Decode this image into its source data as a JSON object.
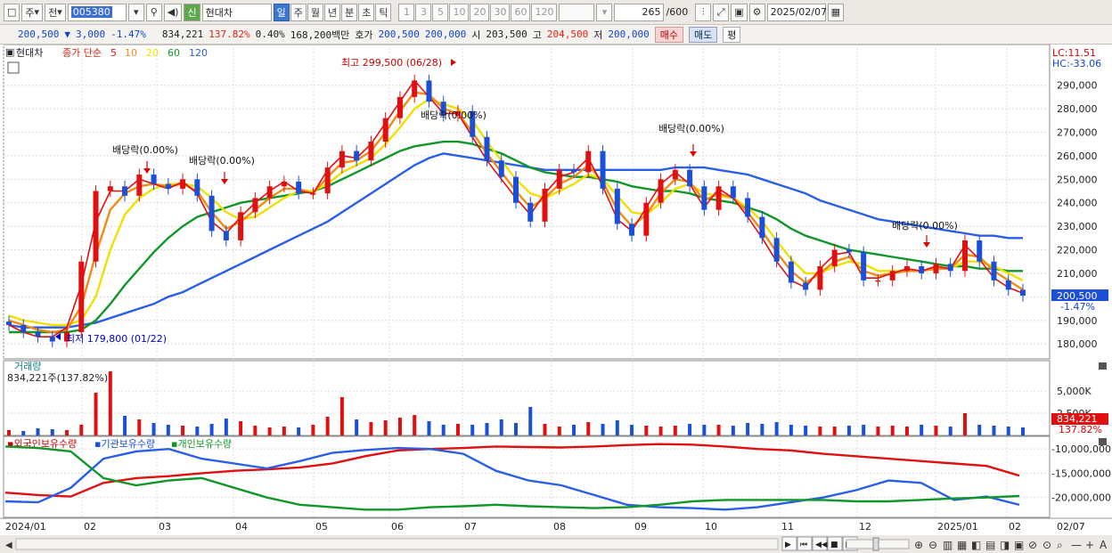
{
  "toolbar": {
    "type_select": "주",
    "prefix_select": "전",
    "code": "005380",
    "market_badge": "신",
    "name": "현대차",
    "periods": [
      "일",
      "주",
      "월",
      "년",
      "분",
      "초",
      "틱"
    ],
    "active_period": "일",
    "minute_buttons": [
      "1",
      "3",
      "5",
      "10",
      "20",
      "30",
      "60",
      "120"
    ],
    "count": "265",
    "count_max": "/600",
    "date": "2025/02/07"
  },
  "quote": {
    "price": "200,500",
    "change_arrow": "▼",
    "change": "3,000",
    "change_pct": "-1.47%",
    "volume": "834,221",
    "volume_ratio": "137.82%",
    "turnover": "0.40%",
    "amount": "168,200백만",
    "bid_label": "호가",
    "bid1": "200,500",
    "bid2": "200,000",
    "open_label": "시",
    "open": "203,500",
    "high_label": "고",
    "high": "204,500",
    "low_label": "저",
    "low": "200,000",
    "buy_label": "매수",
    "sell_label": "매도",
    "avg_label": "평"
  },
  "colors": {
    "ma5": "#e01010",
    "ma10": "#f08c14",
    "ma20": "#f0e000",
    "ma60": "#12962a",
    "ma120": "#2a5ee8",
    "up": "#e01010",
    "down": "#1a4fd8"
  },
  "chart_data": {
    "type": "candlestick",
    "title": "현대차",
    "price_legend": {
      "label": "종가 단순",
      "ma": [
        "5",
        "10",
        "20",
        "60",
        "120"
      ]
    },
    "y_ticks": [
      "290,000",
      "280,000",
      "270,000",
      "260,000",
      "250,000",
      "240,000",
      "230,000",
      "220,000",
      "210,000",
      "200,000",
      "190,000",
      "180,000"
    ],
    "ylim": [
      174000,
      302000
    ],
    "x_ticks": [
      "2024/01",
      "02",
      "03",
      "04",
      "05",
      "06",
      "07",
      "08",
      "09",
      "10",
      "11",
      "12",
      "2025/01",
      "02",
      "02/07"
    ],
    "dates": [
      "2024/01",
      "2024/02",
      "2024/03",
      "2024/04",
      "2024/05",
      "2024/06",
      "2024/07",
      "2024/08",
      "2024/09",
      "2024/10",
      "2024/11",
      "2024/12",
      "2025/01",
      "2025/02"
    ],
    "close_path": [
      188000,
      185000,
      183000,
      181000,
      185000,
      215000,
      245000,
      247000,
      243000,
      252000,
      248000,
      246000,
      250000,
      243000,
      228000,
      224000,
      236000,
      242000,
      247000,
      249000,
      244000,
      244000,
      255000,
      262000,
      258000,
      266000,
      276000,
      285000,
      292000,
      283000,
      277000,
      279000,
      268000,
      258000,
      251000,
      240000,
      232000,
      246000,
      254000,
      253000,
      262000,
      246000,
      231000,
      226000,
      240000,
      250000,
      254000,
      247000,
      237000,
      247000,
      242000,
      234000,
      225000,
      215000,
      206000,
      203000,
      213000,
      220000,
      219000,
      207000,
      207000,
      211000,
      213000,
      210000,
      214000,
      211000,
      224000,
      215000,
      207000,
      203000,
      200500
    ],
    "ma_series": {
      "5": [
        188000,
        185000,
        183000,
        183000,
        187000,
        205000,
        232000,
        245000,
        245000,
        250000,
        248000,
        246000,
        249000,
        244000,
        232000,
        227000,
        234000,
        240000,
        245000,
        249000,
        245000,
        244000,
        254000,
        260000,
        259000,
        265000,
        274000,
        283000,
        292000,
        285000,
        278000,
        278000,
        268000,
        258000,
        250000,
        242000,
        235000,
        244000,
        251000,
        253000,
        259000,
        247000,
        233000,
        228000,
        238000,
        248000,
        253000,
        248000,
        238000,
        246000,
        242000,
        234000,
        225000,
        215000,
        207000,
        204000,
        212000,
        218000,
        219000,
        208000,
        208000,
        210000,
        212000,
        211000,
        213000,
        212000,
        222000,
        216000,
        208000,
        204000,
        201500
      ],
      "10": [
        190000,
        188000,
        186000,
        185000,
        186000,
        196000,
        218000,
        237000,
        244000,
        247000,
        248000,
        247000,
        248000,
        245000,
        236000,
        229000,
        232000,
        237000,
        242000,
        246000,
        246000,
        244000,
        251000,
        257000,
        258000,
        262000,
        270000,
        279000,
        287000,
        286000,
        280000,
        278000,
        270000,
        261000,
        253000,
        245000,
        238000,
        242000,
        248000,
        251000,
        256000,
        249000,
        237000,
        230000,
        235000,
        244000,
        250000,
        249000,
        241000,
        244000,
        242000,
        236000,
        228000,
        219000,
        211000,
        206000,
        210000,
        215000,
        217000,
        211000,
        209000,
        210000,
        211000,
        211000,
        212000,
        212000,
        218000,
        217000,
        211000,
        207000,
        203000
      ],
      "20": [
        192000,
        190000,
        189000,
        188000,
        188000,
        190000,
        200000,
        220000,
        235000,
        242000,
        246000,
        248000,
        248000,
        247000,
        242000,
        236000,
        233000,
        234000,
        238000,
        242000,
        245000,
        245000,
        248000,
        253000,
        256000,
        259000,
        265000,
        272000,
        280000,
        284000,
        282000,
        280000,
        275000,
        266000,
        258000,
        250000,
        244000,
        242000,
        245000,
        248000,
        252000,
        250000,
        243000,
        236000,
        235000,
        240000,
        246000,
        248000,
        244000,
        243000,
        242000,
        238000,
        232000,
        224000,
        216000,
        210000,
        210000,
        213000,
        215000,
        214000,
        211000,
        211000,
        211000,
        211000,
        212000,
        212000,
        215000,
        215000,
        213000,
        210000,
        207000
      ],
      "60": [
        185000,
        185000,
        185000,
        185000,
        185000,
        186000,
        190000,
        197000,
        205000,
        212000,
        219000,
        225000,
        230000,
        234000,
        236000,
        238000,
        240000,
        241000,
        242000,
        243000,
        244000,
        245000,
        247000,
        250000,
        253000,
        256000,
        259000,
        262000,
        264000,
        265000,
        266000,
        266000,
        265000,
        263000,
        261000,
        258000,
        255000,
        253000,
        252000,
        251000,
        251000,
        250000,
        249000,
        247000,
        246000,
        245000,
        245000,
        244000,
        242000,
        241000,
        240000,
        238000,
        236000,
        233000,
        229000,
        226000,
        224000,
        222000,
        220000,
        219000,
        218000,
        217000,
        216000,
        215000,
        214000,
        213000,
        213000,
        212000,
        212000,
        211000,
        211000
      ],
      "120": [
        188000,
        187000,
        187000,
        187000,
        187000,
        188000,
        189000,
        191000,
        193000,
        195000,
        197000,
        200000,
        202000,
        205000,
        208000,
        211000,
        214000,
        217000,
        220000,
        223000,
        226000,
        229000,
        232000,
        236000,
        240000,
        244000,
        248000,
        252000,
        256000,
        259000,
        261000,
        260000,
        259000,
        258000,
        257000,
        256000,
        255000,
        254000,
        254000,
        254000,
        254000,
        254000,
        254000,
        254000,
        254000,
        254000,
        255000,
        255000,
        255000,
        254000,
        253000,
        252000,
        250000,
        248000,
        246000,
        244000,
        241000,
        239000,
        237000,
        235000,
        233000,
        232000,
        231000,
        230000,
        229000,
        228000,
        227000,
        226000,
        226000,
        225000,
        225000
      ]
    },
    "annotations": [
      {
        "text": "최고 299,500 (06/28)",
        "type": "high"
      },
      {
        "text": "최저 179,800 (01/22)",
        "type": "low"
      },
      {
        "text": "배당락(0.00%)",
        "type": "ex-div"
      },
      {
        "text": "배당락(0.00%)",
        "type": "ex-div"
      },
      {
        "text": "배당락(0.00%)",
        "type": "ex-div"
      },
      {
        "text": "배당락(0.00%)",
        "type": "ex-div"
      },
      {
        "text": "배당락(0.00%)",
        "type": "ex-div"
      }
    ],
    "right_labels": {
      "lc": "LC:11.51",
      "hc": "HC:-33.06",
      "price": "200,500",
      "pct": "-1.47%"
    },
    "volume_panel": {
      "title": "거래량",
      "summary": "834,221주(137.82%)",
      "y_ticks": [
        "5,000K",
        "2,500K"
      ],
      "last": "834,221",
      "last_pct": "137.82%",
      "bars": [
        0.6,
        0.5,
        0.8,
        0.7,
        0.6,
        1.2,
        4.8,
        7.2,
        2.2,
        1.8,
        1.4,
        1.2,
        1.1,
        1.0,
        1.3,
        1.9,
        1.6,
        1.1,
        0.9,
        1.0,
        0.9,
        1.2,
        2.1,
        4.3,
        1.8,
        1.5,
        1.7,
        2.0,
        2.3,
        1.6,
        1.2,
        1.3,
        1.2,
        1.4,
        1.8,
        1.4,
        3.2,
        1.3,
        1.0,
        1.2,
        1.5,
        1.3,
        1.7,
        1.2,
        1.1,
        1.0,
        1.1,
        1.3,
        1.2,
        1.2,
        1.1,
        1.4,
        1.3,
        1.5,
        1.2,
        1.1,
        1.0,
        1.0,
        1.1,
        1.2,
        1.0,
        1.1,
        1.0,
        1.2,
        1.1,
        1.0,
        2.5,
        1.2,
        1.1,
        1.0,
        0.9
      ]
    },
    "holdings_panel": {
      "legend": [
        "외국인보유수량",
        "기관보유수량",
        "개인보유수량"
      ],
      "y_ticks": [
        "-10,000,000",
        "-15,000,000",
        "-20,000,000"
      ],
      "foreign": [
        -19000000,
        -19500000,
        -19800000,
        -17000000,
        -16000000,
        -15600000,
        -15000000,
        -14500000,
        -14200000,
        -13800000,
        -13000000,
        -11500000,
        -10300000,
        -10000000,
        -9800000,
        -9500000,
        -9600000,
        -9700000,
        -9500000,
        -9200000,
        -9000000,
        -9100000,
        -9500000,
        -10000000,
        -10300000,
        -11000000,
        -11500000,
        -12000000,
        -12500000,
        -13000000,
        -13500000,
        -15500000
      ],
      "institution": [
        -20800000,
        -21000000,
        -18000000,
        -12000000,
        -10500000,
        -10000000,
        -12000000,
        -13000000,
        -14000000,
        -12500000,
        -10800000,
        -10200000,
        -9800000,
        -10000000,
        -11000000,
        -14500000,
        -16500000,
        -17500000,
        -19500000,
        -21500000,
        -22000000,
        -22200000,
        -22500000,
        -22000000,
        -21000000,
        -20000000,
        -18500000,
        -16500000,
        -17000000,
        -20500000,
        -19800000,
        -21500000
      ],
      "individual": [
        -9500000,
        -9800000,
        -10500000,
        -16000000,
        -17500000,
        -16500000,
        -16000000,
        -18000000,
        -20000000,
        -21500000,
        -22000000,
        -22500000,
        -22500000,
        -22000000,
        -21800000,
        -21500000,
        -21800000,
        -22000000,
        -22200000,
        -22000000,
        -21500000,
        -20800000,
        -20500000,
        -20500000,
        -20500000,
        -20500000,
        -20800000,
        -20800000,
        -20500000,
        -20200000,
        -20000000,
        -19700000
      ]
    }
  }
}
